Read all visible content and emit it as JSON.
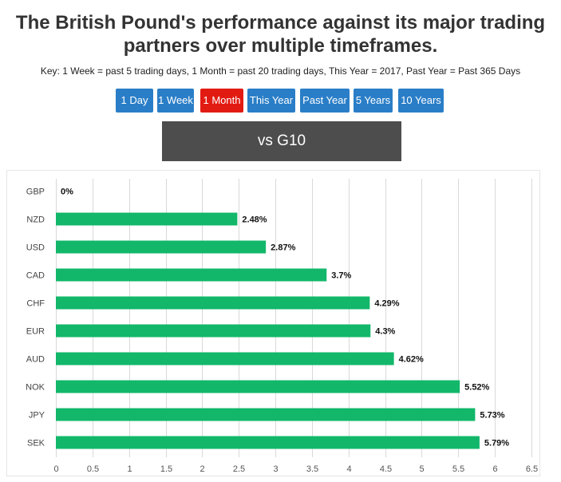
{
  "header": {
    "title_line1": "The British Pound's performance against its major trading",
    "title_line2": "partners over multiple timeframes.",
    "key": "Key: 1 Week = past 5 trading days, 1 Month = past 20 trading days, This Year = 2017, Past Year = Past 365 Days"
  },
  "timeframes": [
    {
      "label": "1 Day",
      "active": false
    },
    {
      "label": "1 Week",
      "active": false
    },
    {
      "label": "1 Month",
      "active": true
    },
    {
      "label": "This Year",
      "active": false
    },
    {
      "label": "Past Year",
      "active": false
    },
    {
      "label": "5 Years",
      "active": false
    },
    {
      "label": "10 Years",
      "active": false
    }
  ],
  "section_title": "vs G10",
  "colors": {
    "bar": "#12b76a",
    "button": "#2a7ec7",
    "button_active": "#e21b12",
    "grid": "#d9d9d9"
  },
  "chart_data": {
    "type": "bar",
    "orientation": "horizontal",
    "title": "vs G10",
    "categories": [
      "GBP",
      "NZD",
      "USD",
      "CAD",
      "CHF",
      "EUR",
      "AUD",
      "NOK",
      "JPY",
      "SEK"
    ],
    "values": [
      0,
      2.48,
      2.87,
      3.7,
      4.29,
      4.3,
      4.62,
      5.52,
      5.73,
      5.79
    ],
    "value_labels": [
      "0%",
      "2.48%",
      "2.87%",
      "3.7%",
      "4.29%",
      "4.3%",
      "4.62%",
      "5.52%",
      "5.73%",
      "5.79%"
    ],
    "xlim": [
      0,
      6.5
    ],
    "xticks": [
      0,
      0.5,
      1,
      1.5,
      2,
      2.5,
      3,
      3.5,
      4,
      4.5,
      5,
      5.5,
      6,
      6.5
    ],
    "xtick_labels": [
      "0",
      "0.5",
      "1",
      "1.5",
      "2",
      "2.5",
      "3",
      "3.5",
      "4",
      "4.5",
      "5",
      "5.5",
      "6",
      "6.5"
    ],
    "grid": true,
    "legend": "none"
  }
}
